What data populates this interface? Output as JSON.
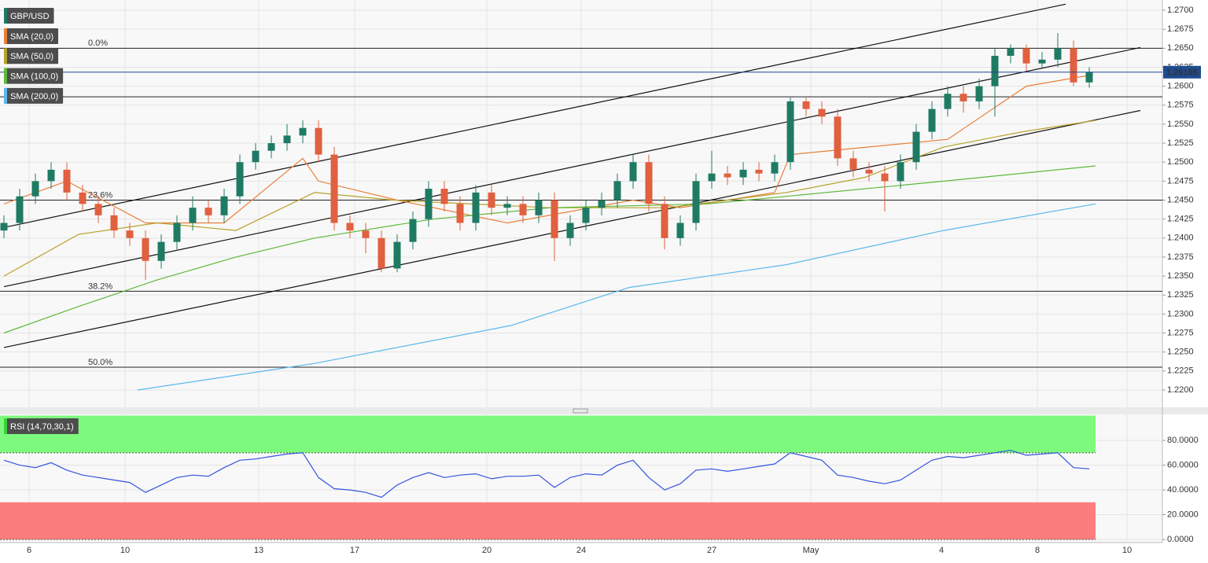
{
  "chart_data": [
    {
      "type": "candlestick",
      "title": "GBP/USD",
      "open": [
        1.241,
        1.242,
        1.2455,
        1.2475,
        1.249,
        1.246,
        1.2445,
        1.243,
        1.241,
        1.24,
        1.237,
        1.2395,
        1.242,
        1.244,
        1.243,
        1.2455,
        1.25,
        1.2515,
        1.2525,
        1.2535,
        1.2545,
        1.251,
        1.242,
        1.241,
        1.24,
        1.236,
        1.2395,
        1.2425,
        1.2465,
        1.2445,
        1.242,
        1.246,
        1.244,
        1.2445,
        1.243,
        1.245,
        1.24,
        1.242,
        1.244,
        1.245,
        1.2475,
        1.25,
        1.2445,
        1.24,
        1.242,
        1.2475,
        1.2485,
        1.248,
        1.249,
        1.2485,
        1.25,
        1.258,
        1.257,
        1.256,
        1.2505,
        1.249,
        1.2485,
        1.2475,
        1.25,
        1.254,
        1.257,
        1.259,
        1.258,
        1.26,
        1.264,
        1.265,
        1.263,
        1.2635,
        1.265,
        1.2605
      ],
      "high": [
        1.243,
        1.2465,
        1.2485,
        1.25,
        1.25,
        1.247,
        1.2455,
        1.244,
        1.242,
        1.241,
        1.2405,
        1.243,
        1.2455,
        1.245,
        1.2465,
        1.251,
        1.2525,
        1.2535,
        1.255,
        1.2555,
        1.2555,
        1.252,
        1.243,
        1.242,
        1.241,
        1.2405,
        1.2435,
        1.2475,
        1.2475,
        1.2455,
        1.247,
        1.247,
        1.2455,
        1.2455,
        1.246,
        1.246,
        1.243,
        1.245,
        1.246,
        1.2485,
        1.251,
        1.251,
        1.2455,
        1.243,
        1.2485,
        1.2515,
        1.2495,
        1.25,
        1.25,
        1.251,
        1.2585,
        1.2585,
        1.258,
        1.257,
        1.2515,
        1.25,
        1.2495,
        1.251,
        1.255,
        1.258,
        1.26,
        1.26,
        1.261,
        1.265,
        1.2655,
        1.2655,
        1.2645,
        1.267,
        1.266,
        1.2625
      ],
      "low": [
        1.24,
        1.241,
        1.2445,
        1.2465,
        1.245,
        1.2435,
        1.242,
        1.24,
        1.239,
        1.2345,
        1.236,
        1.2385,
        1.241,
        1.242,
        1.242,
        1.2445,
        1.249,
        1.2505,
        1.2515,
        1.2525,
        1.25,
        1.241,
        1.24,
        1.238,
        1.2355,
        1.2355,
        1.2385,
        1.2415,
        1.2435,
        1.241,
        1.241,
        1.243,
        1.243,
        1.242,
        1.242,
        1.237,
        1.239,
        1.241,
        1.243,
        1.244,
        1.2465,
        1.2435,
        1.2385,
        1.239,
        1.241,
        1.2465,
        1.247,
        1.247,
        1.2475,
        1.2475,
        1.249,
        1.256,
        1.255,
        1.2495,
        1.248,
        1.2475,
        1.2435,
        1.2465,
        1.249,
        1.253,
        1.256,
        1.2565,
        1.257,
        1.256,
        1.263,
        1.262,
        1.2625,
        1.2625,
        1.26,
        1.2598
      ],
      "close": [
        1.242,
        1.2455,
        1.2475,
        1.249,
        1.246,
        1.2445,
        1.243,
        1.241,
        1.24,
        1.237,
        1.2395,
        1.242,
        1.244,
        1.243,
        1.2455,
        1.25,
        1.2515,
        1.2525,
        1.2535,
        1.2545,
        1.251,
        1.242,
        1.241,
        1.24,
        1.236,
        1.2395,
        1.2425,
        1.2465,
        1.2445,
        1.242,
        1.246,
        1.244,
        1.2445,
        1.243,
        1.245,
        1.24,
        1.242,
        1.244,
        1.245,
        1.2475,
        1.25,
        1.2445,
        1.24,
        1.242,
        1.2475,
        1.2485,
        1.248,
        1.249,
        1.2485,
        1.25,
        1.258,
        1.257,
        1.256,
        1.2505,
        1.249,
        1.2485,
        1.2475,
        1.25,
        1.254,
        1.257,
        1.259,
        1.258,
        1.26,
        1.264,
        1.265,
        1.263,
        1.2635,
        1.265,
        1.2605,
        1.26185
      ],
      "up_color": "#1f7a64",
      "down_color": "#e0603f",
      "last_price": 1.26185,
      "last_price_color": "#1e4b8f",
      "series": [
        {
          "name": "SMA (20,0)",
          "color": "#e8803a",
          "x": [
            0,
            4,
            9,
            14,
            19,
            20,
            25,
            32,
            40,
            43,
            49,
            50,
            55,
            60,
            65,
            69.2
          ],
          "values": [
            1.2445,
            1.2475,
            1.242,
            1.242,
            1.2505,
            1.2475,
            1.245,
            1.242,
            1.245,
            1.244,
            1.246,
            1.251,
            1.252,
            1.253,
            1.26,
            1.2615
          ]
        },
        {
          "name": "SMA (50,0)",
          "color": "#b5a32a",
          "x": [
            0,
            4.75,
            9.75,
            14.75,
            19.75,
            24.75,
            34.75,
            42.25,
            49.75,
            54.75,
            59.75,
            64.75,
            69.4
          ],
          "values": [
            1.235,
            1.2405,
            1.242,
            1.241,
            1.246,
            1.245,
            1.244,
            1.244,
            1.246,
            1.248,
            1.252,
            1.254,
            1.2555
          ]
        },
        {
          "name": "SMA (100,0)",
          "color": "#5fb83a",
          "x": [
            0,
            4.75,
            9.75,
            14.75,
            19.75,
            27.25,
            34.75,
            44.75,
            49.75,
            59.75,
            69.4
          ],
          "values": [
            1.2275,
            1.231,
            1.2345,
            1.2375,
            1.24,
            1.2425,
            1.244,
            1.2445,
            1.2455,
            1.2475,
            1.2495
          ]
        },
        {
          "name": "SMA (200,0)",
          "color": "#5ab8ee",
          "x": [
            8.5,
            19.75,
            32.25,
            39.75,
            49.75,
            59.75,
            69.4
          ],
          "values": [
            1.22,
            1.2235,
            1.2285,
            1.2335,
            1.2365,
            1.241,
            1.2445
          ]
        }
      ],
      "fib_levels": [
        {
          "label": "0.0%",
          "value": 1.265
        },
        {
          "label": "23.6%",
          "value": 1.245
        },
        {
          "label": "38.2%",
          "value": 1.233
        },
        {
          "label": "50.0%",
          "value": 1.223
        }
      ],
      "levels": [
        1.2586
      ],
      "trendlines": [
        {
          "x": [
            0,
            67.5
          ],
          "values": [
            1.2414,
            1.2708
          ]
        },
        {
          "x": [
            0,
            72.25
          ],
          "values": [
            1.2336,
            1.2651
          ]
        },
        {
          "x": [
            0,
            72.25
          ],
          "values": [
            1.2256,
            1.2568
          ]
        }
      ],
      "xlim": [
        -0.25,
        73.65
      ],
      "ylim": [
        1.21772,
        1.27135
      ],
      "yticks": [
        {
          "value": 1.27,
          "label": "1.2700"
        },
        {
          "value": 1.2675,
          "label": "1.2675"
        },
        {
          "value": 1.265,
          "label": "1.2650"
        },
        {
          "value": 1.2625,
          "label": "1.2625"
        },
        {
          "value": 1.26,
          "label": "1.2600"
        },
        {
          "value": 1.2575,
          "label": "1.2575"
        },
        {
          "value": 1.255,
          "label": "1.2550"
        },
        {
          "value": 1.2525,
          "label": "1.2525"
        },
        {
          "value": 1.25,
          "label": "1.2500"
        },
        {
          "value": 1.2475,
          "label": "1.2475"
        },
        {
          "value": 1.245,
          "label": "1.2450"
        },
        {
          "value": 1.2425,
          "label": "1.2425"
        },
        {
          "value": 1.24,
          "label": "1.2400"
        },
        {
          "value": 1.2375,
          "label": "1.2375"
        },
        {
          "value": 1.235,
          "label": "1.2350"
        },
        {
          "value": 1.2325,
          "label": "1.2325"
        },
        {
          "value": 1.23,
          "label": "1.2300"
        },
        {
          "value": 1.2275,
          "label": "1.2275"
        },
        {
          "value": 1.225,
          "label": "1.2250"
        },
        {
          "value": 1.2225,
          "label": "1.2225"
        },
        {
          "value": 1.22,
          "label": "1.2200"
        }
      ],
      "xticks": [
        {
          "value": 1.6,
          "label": "6"
        },
        {
          "value": 7.7,
          "label": "10"
        },
        {
          "value": 16.2,
          "label": "13"
        },
        {
          "value": 22.3,
          "label": "17"
        },
        {
          "value": 30.7,
          "label": "20"
        },
        {
          "value": 36.7,
          "label": "24"
        },
        {
          "value": 45,
          "label": "27"
        },
        {
          "value": 51.3,
          "label": "May"
        },
        {
          "value": 59.6,
          "label": "4"
        },
        {
          "value": 65.7,
          "label": "8"
        },
        {
          "value": 71.4,
          "label": "10"
        }
      ],
      "grid": true
    },
    {
      "type": "line",
      "title": "RSI (14,70,30,1)",
      "color": "#3355dd",
      "values": [
        64,
        60,
        58,
        62,
        56,
        52,
        50,
        48,
        46,
        38,
        44,
        50,
        52,
        51,
        58,
        64,
        65,
        67,
        69,
        70,
        50,
        41,
        40,
        38,
        34,
        44,
        50,
        54,
        50,
        52,
        53,
        49,
        51,
        51,
        52,
        42,
        50,
        53,
        52,
        60,
        64,
        50,
        40,
        45,
        56,
        57,
        55,
        57,
        59,
        61,
        70,
        67,
        64,
        52,
        50,
        47,
        45,
        48,
        56,
        64,
        67,
        66,
        68,
        70,
        72,
        68,
        69,
        70,
        58,
        57
      ],
      "zones": [
        {
          "from": 70,
          "to": 100,
          "color": "#7dfa7d"
        },
        {
          "from": 0,
          "to": 30,
          "color": "#fb7d7d"
        }
      ],
      "xlim": [
        -0.25,
        73.65
      ],
      "ylim": [
        -2.5,
        101
      ],
      "yticks": [
        {
          "value": 80,
          "label": "80.0000"
        },
        {
          "value": 60,
          "label": "60.0000"
        },
        {
          "value": 40,
          "label": "40.0000"
        },
        {
          "value": 20,
          "label": "20.0000"
        },
        {
          "value": 0,
          "label": "0.0000"
        }
      ],
      "grid": true
    }
  ]
}
